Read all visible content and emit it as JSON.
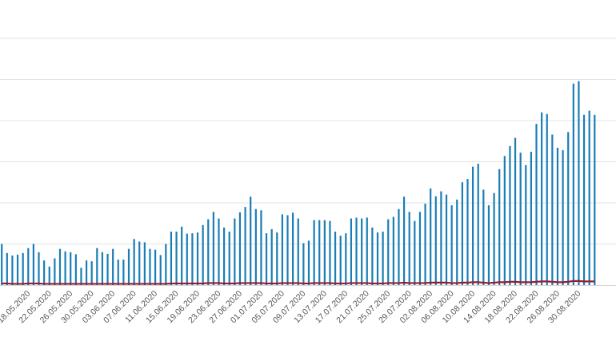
{
  "chart_data": {
    "type": "bar",
    "title": "",
    "xlabel": "",
    "ylabel": "",
    "ylim": [
      0,
      6
    ],
    "grid": true,
    "legend": "none",
    "start_date": "2020-05-13",
    "x_tick_labels": [
      "18.05.2020",
      "22.05.2020",
      "26.05.2020",
      "30.05.2020",
      "03.06.2020",
      "07.06.2020",
      "11.06.2020",
      "15.06.2020",
      "19.06.2020",
      "23.06.2020",
      "27.06.2020",
      "01.07.2020",
      "05.07.2020",
      "09.07.2020",
      "13.07.2020",
      "17.07.2020",
      "21.07.2020",
      "25.07.2020",
      "29.07.2020",
      "02.08.2020",
      "06.08.2020",
      "10.08.2020",
      "14.08.2020",
      "18.08.2020",
      "22.08.2020",
      "26.08.2020",
      "30.08.2020"
    ],
    "series": [
      {
        "type": "bar",
        "color": "#1a7db5",
        "values": [
          1.0,
          0.78,
          0.72,
          0.74,
          0.78,
          0.9,
          1.0,
          0.8,
          0.6,
          0.45,
          0.65,
          0.88,
          0.82,
          0.8,
          0.75,
          0.42,
          0.6,
          0.58,
          0.9,
          0.8,
          0.76,
          0.88,
          0.62,
          0.62,
          0.88,
          1.12,
          1.06,
          1.04,
          0.88,
          0.86,
          0.73,
          1.0,
          1.3,
          1.3,
          1.42,
          1.25,
          1.26,
          1.28,
          1.46,
          1.6,
          1.78,
          1.62,
          1.4,
          1.3,
          1.62,
          1.77,
          1.9,
          2.15,
          1.85,
          1.82,
          1.26,
          1.36,
          1.28,
          1.72,
          1.7,
          1.76,
          1.62,
          1.02,
          1.08,
          1.58,
          1.58,
          1.58,
          1.56,
          1.3,
          1.2,
          1.26,
          1.62,
          1.64,
          1.62,
          1.64,
          1.4,
          1.28,
          1.3,
          1.6,
          1.66,
          1.85,
          2.15,
          1.78,
          1.56,
          1.78,
          1.98,
          2.35,
          2.16,
          2.28,
          2.2,
          1.94,
          2.08,
          2.5,
          2.58,
          2.88,
          2.95,
          2.32,
          1.94,
          2.24,
          2.82,
          3.14,
          3.38,
          3.58,
          3.22,
          2.92,
          3.24,
          3.92,
          4.2,
          4.16,
          3.66,
          3.34,
          3.28,
          3.72,
          4.9,
          4.96,
          4.14,
          4.24,
          4.14
        ]
      },
      {
        "type": "line",
        "color": "#9b1b2e",
        "values": [
          0.04,
          0.04,
          0.03,
          0.03,
          0.03,
          0.04,
          0.04,
          0.04,
          0.03,
          0.03,
          0.03,
          0.03,
          0.03,
          0.03,
          0.03,
          0.03,
          0.03,
          0.03,
          0.03,
          0.03,
          0.03,
          0.03,
          0.03,
          0.03,
          0.03,
          0.03,
          0.03,
          0.03,
          0.03,
          0.03,
          0.03,
          0.03,
          0.04,
          0.04,
          0.04,
          0.04,
          0.04,
          0.04,
          0.04,
          0.05,
          0.05,
          0.05,
          0.04,
          0.04,
          0.04,
          0.05,
          0.05,
          0.05,
          0.05,
          0.05,
          0.04,
          0.04,
          0.04,
          0.05,
          0.05,
          0.05,
          0.05,
          0.04,
          0.04,
          0.05,
          0.05,
          0.05,
          0.05,
          0.04,
          0.04,
          0.04,
          0.05,
          0.05,
          0.05,
          0.05,
          0.04,
          0.04,
          0.04,
          0.05,
          0.05,
          0.05,
          0.06,
          0.05,
          0.05,
          0.05,
          0.05,
          0.06,
          0.06,
          0.06,
          0.06,
          0.05,
          0.05,
          0.06,
          0.06,
          0.07,
          0.07,
          0.06,
          0.05,
          0.06,
          0.07,
          0.07,
          0.08,
          0.08,
          0.07,
          0.07,
          0.07,
          0.08,
          0.09,
          0.09,
          0.08,
          0.07,
          0.07,
          0.08,
          0.1,
          0.1,
          0.09,
          0.09,
          0.09
        ]
      }
    ]
  }
}
